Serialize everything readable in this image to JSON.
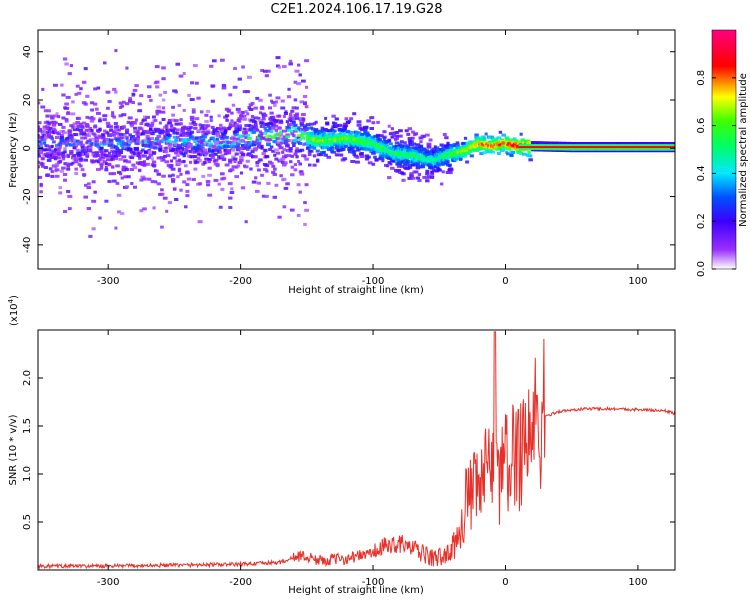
{
  "title": "C2E1.2024.106.17.19.G28",
  "chart_data": [
    {
      "type": "heatmap",
      "xlabel": "Height of straight line (km)",
      "ylabel": "Frequency (Hz)",
      "xlim": [
        -353,
        128
      ],
      "ylim": [
        -50,
        49
      ],
      "xticks": [
        -300,
        -200,
        -100,
        0,
        100
      ],
      "yticks": [
        -40,
        -20,
        0,
        20,
        40
      ],
      "colorbar": {
        "label": "Normalized spectral amplitude",
        "range": [
          0,
          1
        ],
        "ticks": [
          0.0,
          0.2,
          0.4,
          0.6,
          0.8
        ],
        "colormap": "rainbow (white→violet→blue→cyan→green→yellow→red→pink)"
      },
      "ridge": {
        "height_km": [
          -350,
          -300,
          -250,
          -215,
          -200,
          -180,
          -160,
          -140,
          -120,
          -100,
          -85,
          -70,
          -55,
          -45,
          -30,
          -20,
          -10,
          0,
          10,
          50,
          100,
          128
        ],
        "frequency_hz": [
          2,
          2,
          3,
          2,
          4,
          5,
          6,
          3,
          4,
          2,
          -2,
          -3,
          -5,
          -3,
          -1,
          2,
          1,
          2,
          1,
          0.5,
          0.5,
          0.5
        ],
        "peak_amplitude": [
          0.25,
          0.25,
          0.3,
          0.35,
          0.45,
          0.5,
          0.55,
          0.55,
          0.55,
          0.5,
          0.45,
          0.45,
          0.4,
          0.45,
          0.6,
          0.7,
          0.75,
          0.75,
          0.85,
          0.9,
          0.9,
          0.9
        ]
      },
      "grid": false
    },
    {
      "type": "line",
      "xlabel": "Height of straight line (km)",
      "ylabel": "SNR (10 * v/v)",
      "multiplier": "(x10",
      "multiplier_exp": "4",
      "multiplier_close": ")",
      "xlim": [
        -353,
        128
      ],
      "ylim": [
        0,
        2.5
      ],
      "xticks": [
        -300,
        -200,
        -100,
        0,
        100
      ],
      "yticks": [
        0.5,
        1.0,
        1.5,
        2.0
      ],
      "ytick_labels": [
        "0.5",
        "1.0",
        "1.5",
        "2.0"
      ],
      "series": [
        {
          "color": "#e8302a",
          "x": [
            -353,
            -300,
            -250,
            -200,
            -170,
            -155,
            -140,
            -120,
            -100,
            -90,
            -80,
            -70,
            -55,
            -45,
            -38,
            -30,
            -20,
            -10,
            -8,
            -5,
            5,
            10,
            20,
            30,
            40,
            60,
            80,
            100,
            120,
            128
          ],
          "y": [
            0.04,
            0.04,
            0.05,
            0.06,
            0.08,
            0.15,
            0.1,
            0.12,
            0.18,
            0.25,
            0.28,
            0.22,
            0.12,
            0.15,
            0.25,
            0.7,
            0.85,
            1.1,
            2.45,
            1.0,
            1.15,
            1.3,
            1.45,
            1.6,
            1.65,
            1.68,
            1.68,
            1.67,
            1.66,
            1.63
          ]
        }
      ],
      "grid": false
    }
  ]
}
